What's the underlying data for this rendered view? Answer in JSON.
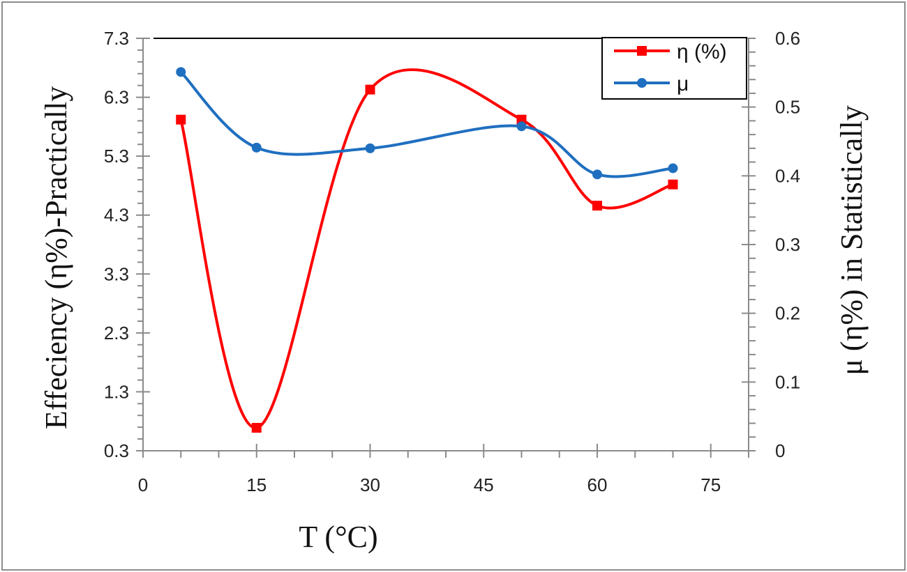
{
  "chart_data": {
    "type": "line",
    "title": "",
    "xlabel": "T (°C)",
    "ylabel_left": "Effeciency  (η%)-Practically",
    "ylabel_right": "μ (η%) in Statistically",
    "xlim": [
      0,
      80
    ],
    "ylim_left": [
      0.3,
      7.3
    ],
    "ylim_right": [
      0,
      0.6
    ],
    "x_ticks": [
      "0",
      "15",
      "30",
      "45",
      "60",
      "75"
    ],
    "y_left_ticks": [
      "0.3",
      "1.3",
      "2.3",
      "3.3",
      "4.3",
      "5.3",
      "6.3",
      "7.3"
    ],
    "y_right_ticks": [
      "0",
      "0.1",
      "0.2",
      "0.3",
      "0.4",
      "0.5",
      "0.6"
    ],
    "grid": false,
    "legend_position": "top-right",
    "series": [
      {
        "name": "η (%)",
        "axis": "left",
        "color": "#ff0000",
        "marker": "square",
        "x": [
          5,
          15,
          30,
          50,
          60,
          70
        ],
        "y": [
          5.92,
          0.69,
          6.43,
          5.92,
          4.46,
          4.82
        ]
      },
      {
        "name": "μ",
        "axis": "right",
        "color": "#1f6fc0",
        "marker": "circle",
        "x": [
          5,
          15,
          30,
          50,
          60,
          70
        ],
        "y": [
          0.551,
          0.441,
          0.44,
          0.472,
          0.402,
          0.411
        ]
      }
    ]
  }
}
